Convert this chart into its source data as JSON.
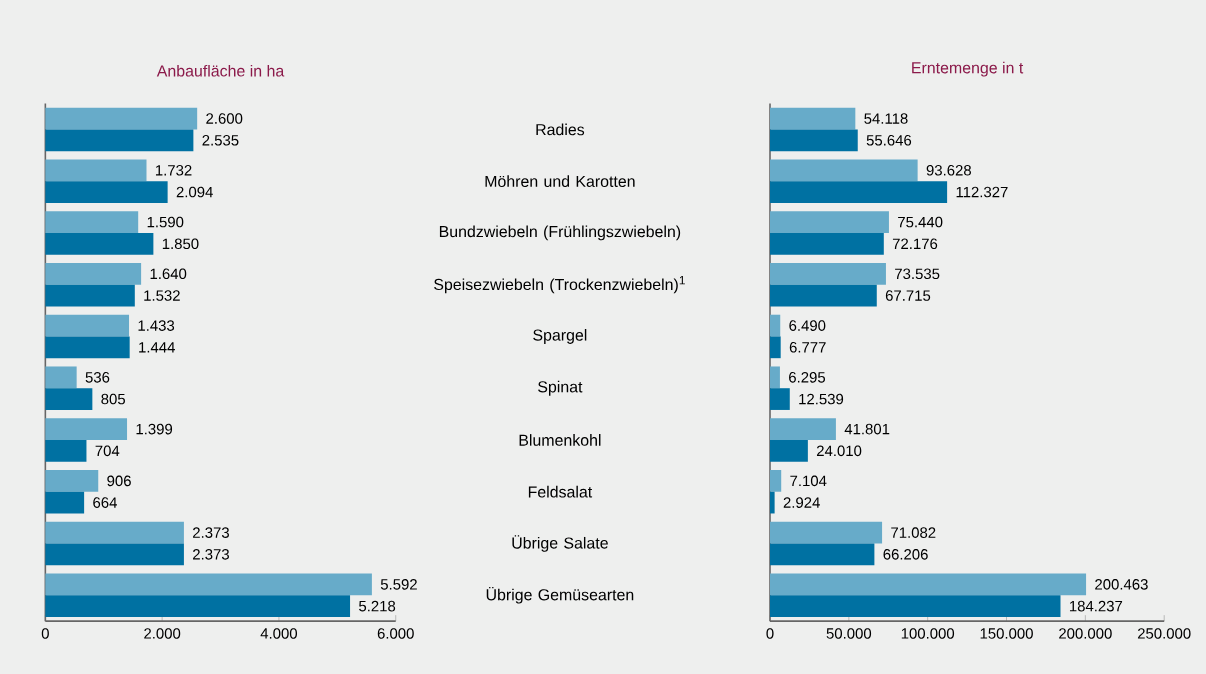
{
  "chart_data": [
    {
      "type": "bar",
      "orientation": "horizontal",
      "title": "Anbaufläche in ha",
      "categories": [
        null,
        null,
        null,
        null,
        null,
        null,
        null,
        null,
        null,
        null
      ],
      "xlim": [
        0,
        6000
      ],
      "xticks": [
        0,
        {
          "value": 2000,
          "label": "2.000"
        },
        {
          "value": 4000,
          "label": "4.000"
        },
        {
          "value": 6000,
          "label": "6.000"
        }
      ],
      "tick_labels": "x",
      "series": [
        {
          "color": "#67abc9",
          "values": [
            2600,
            1732,
            1590,
            1640,
            1433,
            536,
            1399,
            906,
            2373,
            5592
          ],
          "value_labels": [
            "2.600",
            "1.732",
            "1.590",
            "1.640",
            "1.433",
            "536",
            "1.399",
            "906",
            "2.373",
            "5.592"
          ]
        },
        {
          "color": "#0071a2",
          "values": [
            2535,
            2094,
            1850,
            1532,
            1444,
            805,
            704,
            664,
            2373,
            5218
          ],
          "value_labels": [
            "2.535",
            "2.094",
            "1.850",
            "1.532",
            "1.444",
            "805",
            "704",
            "664",
            "2.373",
            "5.218"
          ]
        }
      ]
    },
    {
      "type": "bar",
      "orientation": "horizontal",
      "title": "Erntemenge in t",
      "categories": [
        "Radies",
        "Möhren und Karotten",
        "Bundzwiebeln (Frühlingszwiebeln)",
        "Speisezwiebeln (Trockenzwiebeln)$^{1}$",
        "Spargel",
        "Spinat",
        "Blumenkohl",
        "Feldsalat",
        "Übrige Salate",
        "Übrige Gemüsearten"
      ],
      "xlim": [
        0,
        250000
      ],
      "xticks": [
        0,
        {
          "value": 50000,
          "label": "50.000"
        },
        {
          "value": 100000,
          "label": "100.000"
        },
        {
          "value": 150000,
          "label": "150.000"
        },
        {
          "value": 200000,
          "label": "200.000"
        },
        {
          "value": 250000,
          "label": "250.000"
        }
      ],
      "series": [
        {
          "color": "#67abc9",
          "values": [
            54118,
            93628,
            75440,
            73535,
            6490,
            6295,
            41801,
            7104,
            71082,
            200463
          ],
          "value_labels": [
            "54.118",
            "93.628",
            "75.440",
            "73.535",
            "6.490",
            "6.295",
            "41.801",
            "7.104",
            "71.082",
            "200.463"
          ]
        },
        {
          "color": "#0071a2",
          "values": [
            55646,
            112327,
            72176,
            67715,
            6777,
            12539,
            24010,
            2924,
            66206,
            184237
          ],
          "value_labels": [
            "55.646",
            "112.327",
            "72.176",
            "67.715",
            "6.777",
            "12.539",
            "24.010",
            "2.924",
            "66.206",
            "184.237"
          ]
        }
      ]
    }
  ]
}
